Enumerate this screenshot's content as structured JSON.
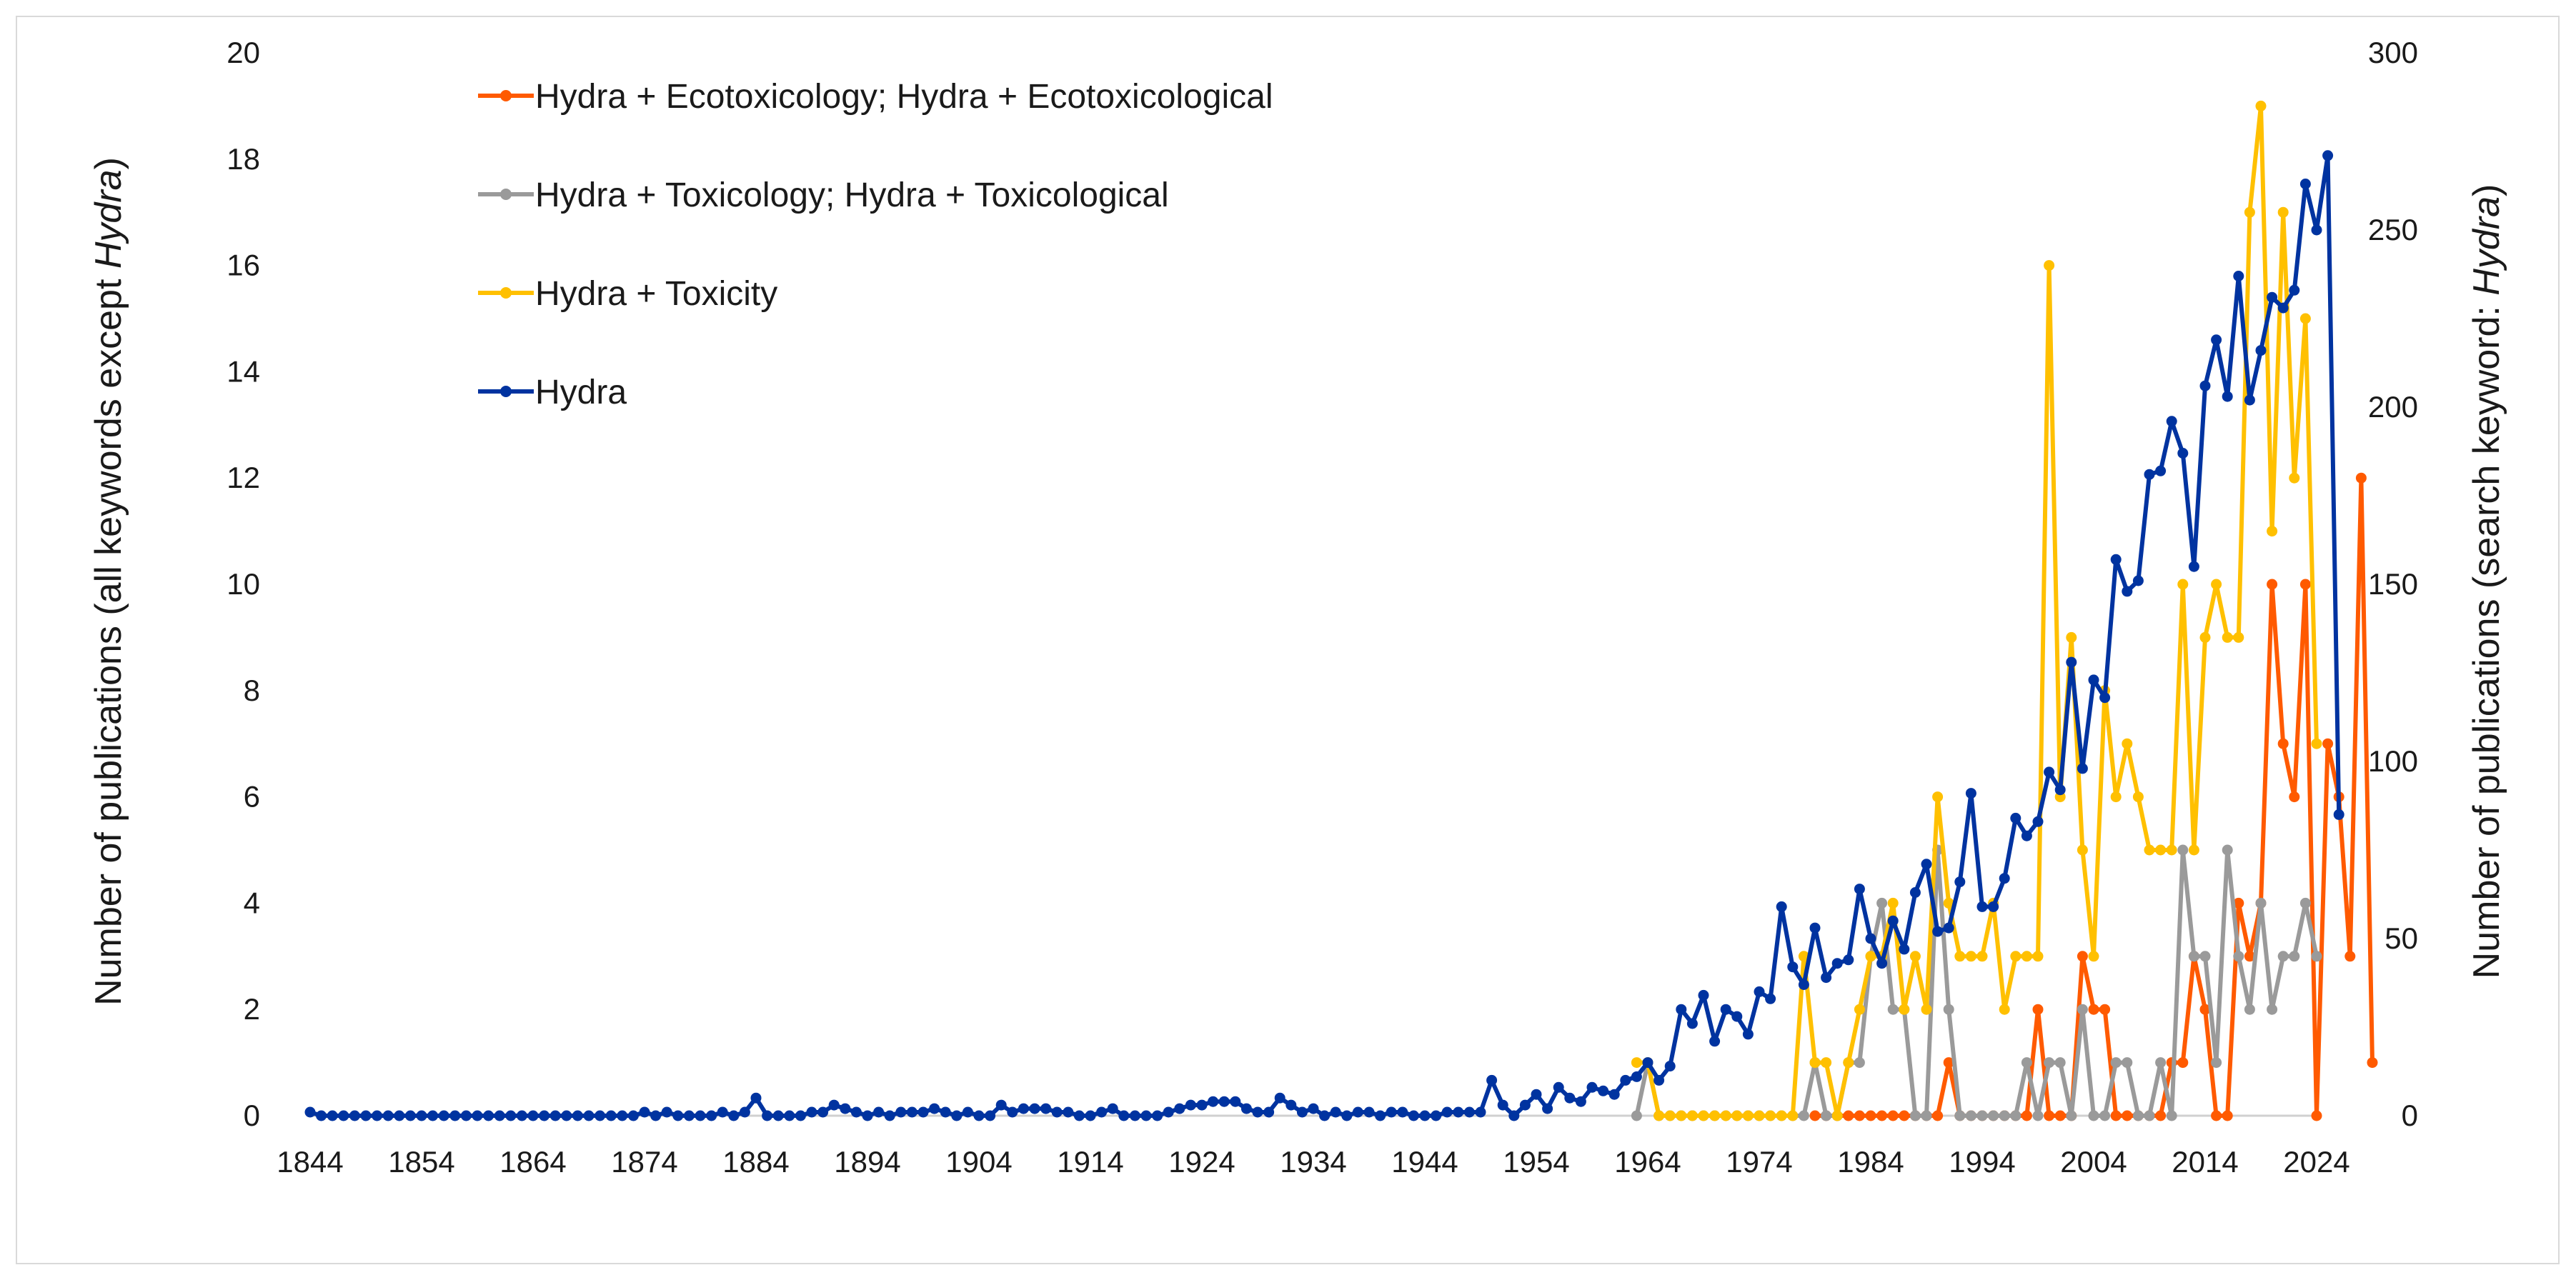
{
  "chart_data": {
    "type": "line",
    "title": "",
    "xlabel": "",
    "ylabel_left": {
      "before": "Number of publications (all keywords except ",
      "italic": "Hydra",
      "after": ")"
    },
    "ylabel_right": {
      "before": "Number of publications (search keyword: ",
      "italic": "Hydra",
      "after": ")"
    },
    "x_ticks": [
      "1844",
      "1854",
      "1864",
      "1874",
      "1884",
      "1894",
      "1904",
      "1914",
      "1924",
      "1934",
      "1944",
      "1954",
      "1964",
      "1974",
      "1984",
      "1994",
      "2004",
      "2014",
      "2024"
    ],
    "xlim": [
      1844,
      2024
    ],
    "y_left_ticks": [
      "0",
      "2",
      "4",
      "6",
      "8",
      "10",
      "12",
      "14",
      "16",
      "18",
      "20"
    ],
    "ylim_left": [
      0,
      20
    ],
    "y_right_ticks": [
      "0",
      "50",
      "100",
      "150",
      "200",
      "250",
      "300"
    ],
    "ylim_right": [
      0,
      300
    ],
    "legend_position": "top-left",
    "series": [
      {
        "name": "Hydra + Ecotoxicology; Hydra + Ecotoxicological",
        "color": "#FF5A00",
        "axis": "left",
        "start_year": 1979,
        "values": [
          0,
          0,
          0,
          0,
          0,
          0,
          0,
          0,
          0,
          0,
          0,
          0,
          1,
          0,
          0,
          0,
          0,
          0,
          0,
          0,
          2,
          0,
          0,
          0,
          3,
          2,
          2,
          0,
          0,
          0,
          0,
          0,
          1,
          1,
          3,
          2,
          0,
          0,
          4,
          3,
          4,
          10,
          7,
          6,
          10,
          0,
          7,
          6,
          3,
          12,
          1
        ]
      },
      {
        "name": "Hydra + Toxicology; Hydra + Toxicological",
        "color": "#9A9A9A",
        "axis": "left",
        "start_year": 1963,
        "values": [
          0,
          1,
          0,
          0,
          0,
          0,
          0,
          0,
          0,
          0,
          0,
          0,
          0,
          0,
          0,
          0,
          1,
          0,
          0,
          1,
          1,
          3,
          4,
          2,
          2,
          0,
          0,
          5,
          2,
          0,
          0,
          0,
          0,
          0,
          0,
          1,
          0,
          1,
          1,
          0,
          2,
          0,
          0,
          1,
          1,
          0,
          0,
          1,
          0,
          5,
          3,
          3,
          1,
          5,
          3,
          2,
          4,
          2,
          3,
          3,
          4,
          3
        ]
      },
      {
        "name": "Hydra + Toxicity",
        "color": "#FFC000",
        "axis": "left",
        "start_year": 1963,
        "values": [
          1,
          1,
          0,
          0,
          0,
          0,
          0,
          0,
          0,
          0,
          0,
          0,
          0,
          0,
          0,
          3,
          1,
          1,
          0,
          1,
          2,
          3,
          3,
          4,
          2,
          3,
          2,
          6,
          4,
          3,
          3,
          3,
          4,
          2,
          3,
          3,
          3,
          16,
          6,
          9,
          5,
          3,
          8,
          6,
          7,
          6,
          5,
          5,
          5,
          10,
          5,
          9,
          10,
          9,
          9,
          17,
          19,
          11,
          17,
          12,
          15,
          7
        ]
      },
      {
        "name": "Hydra",
        "color": "#0033A0",
        "axis": "right",
        "start_year": 1844,
        "values": [
          1,
          0,
          0,
          0,
          0,
          0,
          0,
          0,
          0,
          0,
          0,
          0,
          0,
          0,
          0,
          0,
          0,
          0,
          0,
          0,
          0,
          0,
          0,
          0,
          0,
          0,
          0,
          0,
          0,
          0,
          1,
          0,
          1,
          0,
          0,
          0,
          0,
          1,
          0,
          1,
          5,
          0,
          0,
          0,
          0,
          1,
          1,
          3,
          2,
          1,
          0,
          1,
          0,
          1,
          1,
          1,
          2,
          1,
          0,
          1,
          0,
          0,
          3,
          1,
          2,
          2,
          2,
          1,
          1,
          0,
          0,
          1,
          2,
          0,
          0,
          0,
          0,
          1,
          2,
          3,
          3,
          4,
          4,
          4,
          2,
          1,
          1,
          5,
          3,
          1,
          2,
          0,
          1,
          0,
          1,
          1,
          0,
          1,
          1,
          0,
          0,
          0,
          1,
          1,
          1,
          1,
          10,
          3,
          0,
          3,
          6,
          2,
          8,
          5,
          4,
          8,
          7,
          6,
          10,
          11,
          15,
          10,
          14,
          30,
          26,
          34,
          21,
          30,
          28,
          23,
          35,
          33,
          59,
          42,
          37,
          53,
          39,
          43,
          44,
          64,
          50,
          43,
          55,
          47,
          63,
          71,
          52,
          53,
          66,
          91,
          59,
          59,
          67,
          84,
          79,
          83,
          97,
          92,
          128,
          98,
          123,
          118,
          157,
          148,
          151,
          181,
          182,
          196,
          187,
          155,
          206,
          219,
          203,
          237,
          202,
          216,
          231,
          228,
          233,
          263,
          250,
          271,
          85
        ]
      }
    ]
  }
}
